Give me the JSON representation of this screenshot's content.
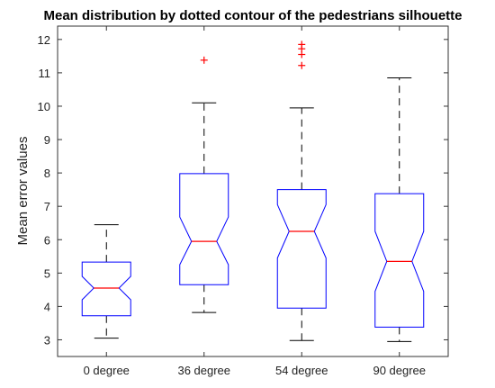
{
  "chart_data": {
    "type": "boxplot",
    "title": "Mean distribution by dotted contour of the pedestrians silhouette",
    "xlabel": "",
    "ylabel": "Mean error values",
    "categories": [
      "0 degree",
      "36 degree",
      "54 degree",
      "90 degree"
    ],
    "ylim": [
      2.5,
      12.4
    ],
    "yticks": [
      3,
      4,
      5,
      6,
      7,
      8,
      9,
      10,
      11,
      12
    ],
    "grid": false,
    "notched": true,
    "colors": {
      "box": "#0000ff",
      "median": "#ff0000",
      "whisker": "#000000",
      "outlier": "#ff0000"
    },
    "boxes": [
      {
        "name": "0 degree",
        "whisker_low": 3.05,
        "q1": 3.72,
        "median": 4.55,
        "q3": 5.33,
        "whisker_high": 6.45,
        "notch_low": 4.2,
        "notch_high": 4.9,
        "outliers": []
      },
      {
        "name": "36 degree",
        "whisker_low": 3.82,
        "q1": 4.65,
        "median": 5.95,
        "q3": 7.98,
        "whisker_high": 10.1,
        "notch_low": 5.25,
        "notch_high": 6.68,
        "outliers": [
          11.38
        ]
      },
      {
        "name": "54 degree",
        "whisker_low": 2.98,
        "q1": 3.95,
        "median": 6.25,
        "q3": 7.5,
        "whisker_high": 9.95,
        "notch_low": 5.45,
        "notch_high": 7.05,
        "outliers": [
          11.22,
          11.55,
          11.72,
          11.85
        ]
      },
      {
        "name": "90 degree",
        "whisker_low": 2.95,
        "q1": 3.38,
        "median": 5.35,
        "q3": 7.38,
        "whisker_high": 10.85,
        "notch_low": 4.45,
        "notch_high": 6.25,
        "outliers": []
      }
    ]
  }
}
